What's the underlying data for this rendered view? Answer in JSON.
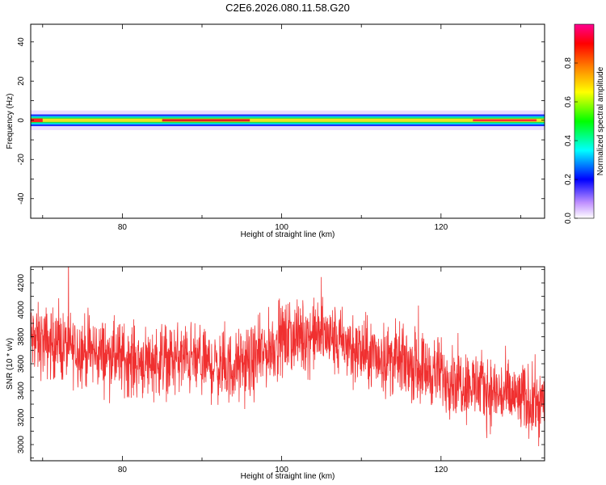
{
  "page": {
    "title": "C2E6.2026.080.11.58.G20"
  },
  "chart_data": [
    {
      "type": "heatmap",
      "xlabel": "Height of straight line (km)",
      "ylabel": "Frequency (Hz)",
      "xlim": [
        68.5,
        133
      ],
      "ylim": [
        -50,
        49
      ],
      "x_ticks": [
        80,
        100,
        120
      ],
      "y_ticks": [
        40,
        20,
        0,
        -20,
        -40
      ],
      "band_center_hz": 0,
      "band_halfwidth_hz": [
        3,
        5
      ],
      "colorbar": {
        "label": "Normalized spectral amplitude",
        "range": [
          0.0,
          1.0
        ],
        "ticks": [
          "0.0",
          "0.2",
          "0.4",
          "0.6",
          "0.8"
        ],
        "colors": [
          "#ffffff",
          "#b070ff",
          "#0000ff",
          "#00ffff",
          "#00ff00",
          "#ffff00",
          "#ff8000",
          "#ff0000",
          "#ff0080"
        ]
      }
    },
    {
      "type": "line",
      "xlabel": "Height of straight line (km)",
      "ylabel": "SNR (10 * v/v)",
      "xlim": [
        68.5,
        133
      ],
      "ylim": [
        2880,
        4320
      ],
      "x_ticks": [
        80,
        100,
        120
      ],
      "y_ticks": [
        3000,
        3200,
        3400,
        3600,
        3800,
        4000,
        4200
      ],
      "series": [
        {
          "color": "#f03030",
          "trend_x": [
            68.5,
            75,
            82,
            88,
            93,
            96,
            100,
            105,
            110,
            116,
            122,
            127,
            133
          ],
          "trend_y": [
            3780,
            3700,
            3620,
            3640,
            3560,
            3600,
            3780,
            3820,
            3680,
            3600,
            3480,
            3380,
            3300
          ]
        }
      ]
    }
  ]
}
